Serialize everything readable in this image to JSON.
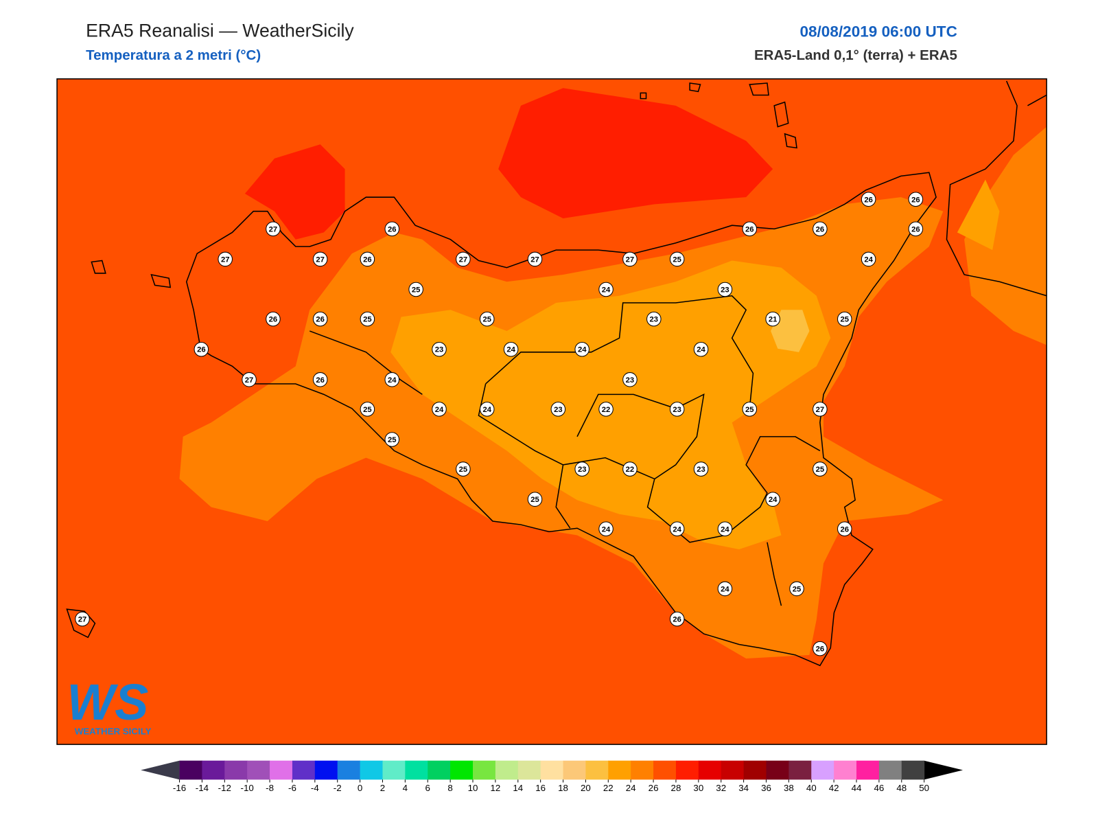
{
  "header": {
    "title": "ERA5 Reanalisi — WeatherSicily",
    "subtitle": "Temperatura a 2 metri (°C)",
    "date": "08/08/2019 06:00 UTC",
    "source": "ERA5-Land 0,1° (terra) + ERA5"
  },
  "stations": [
    27,
    26,
    27,
    27,
    26,
    27,
    27,
    27,
    25,
    26,
    26,
    26,
    26,
    26,
    24,
    25,
    24,
    23,
    26,
    26,
    25,
    25,
    23,
    21,
    25,
    26,
    23,
    24,
    24,
    24,
    27,
    26,
    24,
    23,
    25,
    24,
    24,
    23,
    22,
    23,
    25,
    27,
    25,
    25,
    23,
    22,
    23,
    25,
    24,
    25,
    24,
    24,
    24,
    26,
    24,
    25,
    26,
    26,
    27
  ],
  "colorbar": {
    "ticks": [
      -16,
      -14,
      -12,
      -10,
      -8,
      -6,
      -4,
      -2,
      0,
      2,
      4,
      6,
      8,
      10,
      12,
      14,
      16,
      18,
      20,
      22,
      24,
      26,
      28,
      30,
      32,
      34,
      36,
      38,
      40,
      42,
      44,
      46,
      48,
      50
    ],
    "colors": [
      "#4a0060",
      "#6a1a9a",
      "#8a3aaa",
      "#a050b8",
      "#e070e8",
      "#6030c8",
      "#0010f0",
      "#1a80e0",
      "#10c8e6",
      "#60ecc8",
      "#00e0a0",
      "#00d060",
      "#00e600",
      "#78e640",
      "#c0ec8c",
      "#dce69a",
      "#ffe0a0",
      "#fcc878",
      "#fcc040",
      "#ffa000",
      "#ff8000",
      "#ff5000",
      "#ff1e00",
      "#e60000",
      "#c80000",
      "#a00000",
      "#780018",
      "#7a2040",
      "#d8a0ff",
      "#ff80d0",
      "#ff20a0",
      "#808080",
      "#404040"
    ],
    "under_color": "#3a3a4a",
    "over_color": "#000000"
  },
  "logo": {
    "mark": "WS",
    "name": "WEATHER SICILY"
  }
}
